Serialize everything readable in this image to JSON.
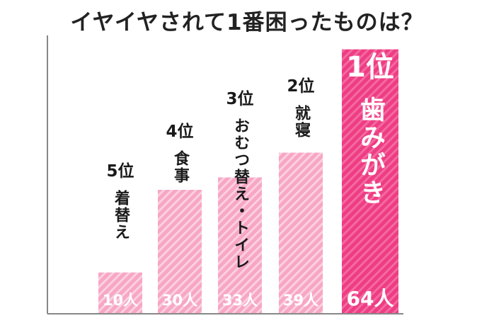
{
  "title": "イヤイヤされて1番困ったものは？",
  "chart_data": {
    "type": "bar",
    "title": "イヤイヤされて1番困ったものは？",
    "categories": [
      "着替え",
      "食事",
      "おむつ替え・トイレ",
      "就寝",
      "歯みがき"
    ],
    "ranks": [
      "5位",
      "4位",
      "3位",
      "2位",
      "1位"
    ],
    "values": [
      10,
      30,
      33,
      39,
      64
    ],
    "value_labels": [
      "10人",
      "30人",
      "33人",
      "39人",
      "64人"
    ],
    "unit": "人",
    "ylim": [
      0,
      66
    ],
    "grid": false,
    "colors": {
      "bar": "#f7a6c4",
      "bar_stripe": "#fbd0e0",
      "top_bar": "#ee3d84",
      "top_stripe": "#f46aa0",
      "value_text": "#ffffff",
      "axis": "#888888"
    }
  }
}
